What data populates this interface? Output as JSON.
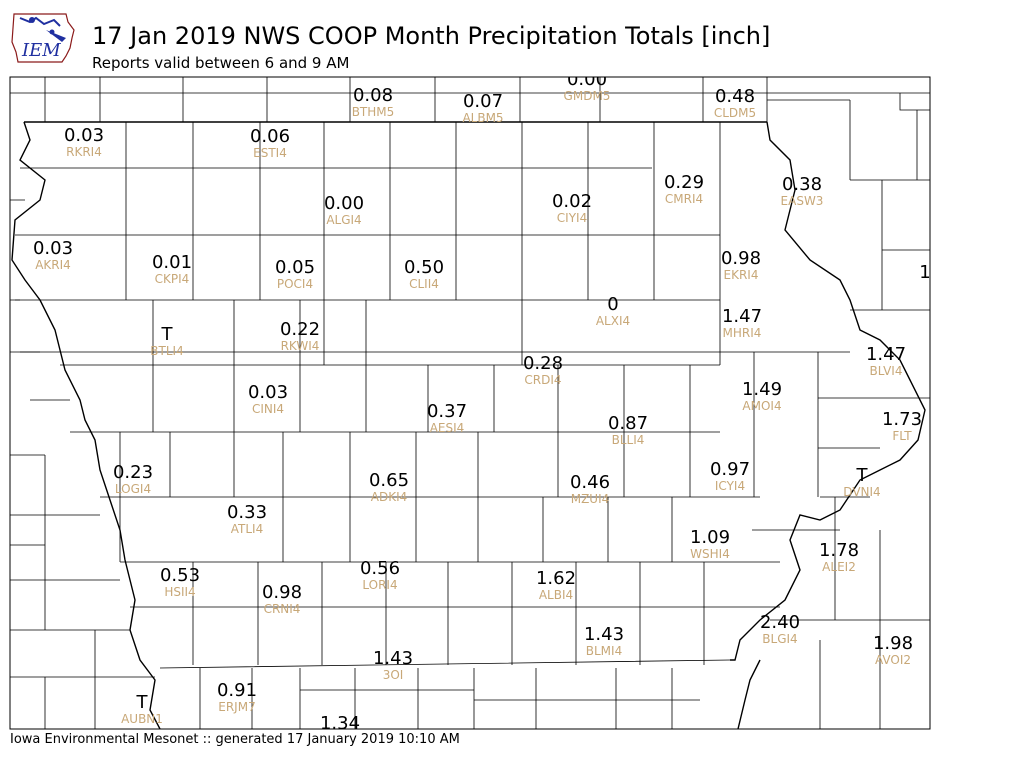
{
  "title": "17 Jan 2019 NWS COOP Month Precipitation Totals [inch]",
  "subtitle": "Reports valid between 6 and 9 AM",
  "footer": "Iowa Environmental Mesonet :: generated 17 January 2019 10:10 AM",
  "logo": {
    "text": "IEM",
    "color": "#1f2fa0",
    "outline_color": "#8b1a1a"
  },
  "colors": {
    "value": "#000000",
    "station_id": "#c8a878",
    "county": "#000000"
  },
  "stations": [
    {
      "id": "BTHM5",
      "value": "0.08"
    },
    {
      "id": "ALBM5",
      "value": "0.07"
    },
    {
      "id": "GMDM5",
      "value": "0.00"
    },
    {
      "id": "CLDM5",
      "value": "0.48"
    },
    {
      "id": "RKRI4",
      "value": "0.03"
    },
    {
      "id": "ESTI4",
      "value": "0.06"
    },
    {
      "id": "ALGI4",
      "value": "0.00"
    },
    {
      "id": "CIYI4",
      "value": "0.02"
    },
    {
      "id": "CMRI4",
      "value": "0.29"
    },
    {
      "id": "EASW3",
      "value": "0.38"
    },
    {
      "id": "AKRI4",
      "value": "0.03"
    },
    {
      "id": "CKPI4",
      "value": "0.01"
    },
    {
      "id": "POCI4",
      "value": "0.05"
    },
    {
      "id": "CLII4",
      "value": "0.50"
    },
    {
      "id": "EKRI4",
      "value": "0.98"
    },
    {
      "id": "",
      "value": "1"
    },
    {
      "id": "ALXI4",
      "value": "0"
    },
    {
      "id": "MHRI4",
      "value": "1.47"
    },
    {
      "id": "BTLI4",
      "value": "T"
    },
    {
      "id": "RKWI4",
      "value": "0.22"
    },
    {
      "id": "CRDI4",
      "value": "0.28"
    },
    {
      "id": "BLVI4",
      "value": "1.47"
    },
    {
      "id": "CINI4",
      "value": "0.03"
    },
    {
      "id": "AESI4",
      "value": "0.37"
    },
    {
      "id": "AMOI4",
      "value": "1.49"
    },
    {
      "id": "BLLI4",
      "value": "0.87"
    },
    {
      "id": "FLT",
      "value": "1.73"
    },
    {
      "id": "LOGI4",
      "value": "0.23"
    },
    {
      "id": "ADKI4",
      "value": "0.65"
    },
    {
      "id": "MZUI4",
      "value": "0.46"
    },
    {
      "id": "ICYI4",
      "value": "0.97"
    },
    {
      "id": "DVNI4",
      "value": "T"
    },
    {
      "id": "ATLI4",
      "value": "0.33"
    },
    {
      "id": "WSHI4",
      "value": "1.09"
    },
    {
      "id": "ALEI2",
      "value": "1.78"
    },
    {
      "id": "HSII4",
      "value": "0.53"
    },
    {
      "id": "CRNI4",
      "value": "0.98"
    },
    {
      "id": "LORI4",
      "value": "0.56"
    },
    {
      "id": "ALBI4",
      "value": "1.62"
    },
    {
      "id": "BLMI4",
      "value": "1.43"
    },
    {
      "id": "BLGI4",
      "value": "2.40"
    },
    {
      "id": "AVOI2",
      "value": "1.98"
    },
    {
      "id": "3OI",
      "value": "1.43"
    },
    {
      "id": "AUBN1",
      "value": "T"
    },
    {
      "id": "ERJM7",
      "value": "0.91"
    },
    {
      "id": "",
      "value": "1.34"
    }
  ]
}
